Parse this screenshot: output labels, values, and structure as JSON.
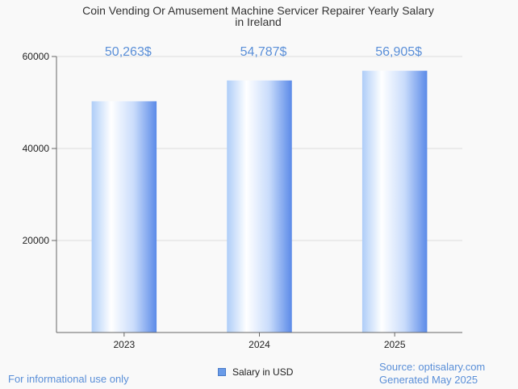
{
  "chart_data": {
    "type": "bar",
    "title": "Coin Vending Or Amusement Machine Servicer Repairer Yearly Salary in Ireland",
    "title_lines": [
      "Coin Vending Or Amusement Machine Servicer Repairer Yearly Salary",
      "in Ireland"
    ],
    "categories": [
      "2023",
      "2024",
      "2025"
    ],
    "series": [
      {
        "name": "Salary in USD",
        "values": [
          50263,
          54787,
          56905
        ]
      }
    ],
    "data_labels": [
      "50,263$",
      "54,787$",
      "56,905$"
    ],
    "y_ticks": [
      20000,
      40000,
      60000
    ],
    "y_tick_labels": [
      "20000",
      "40000",
      "60000"
    ],
    "ylim": [
      0,
      60000
    ],
    "grid": true,
    "legend_position": "bottom",
    "colors": {
      "bar_light": "#ffffff",
      "bar_mid": "#c6dcfb",
      "bar_dark": "#5b8ae8",
      "label": "#5a8fd8",
      "grid": "#dddddd",
      "axis": "#666666"
    }
  },
  "footer": {
    "disclaimer": "For informational use only",
    "source": "Source: optisalary.com",
    "generated": "Generated May 2025"
  }
}
